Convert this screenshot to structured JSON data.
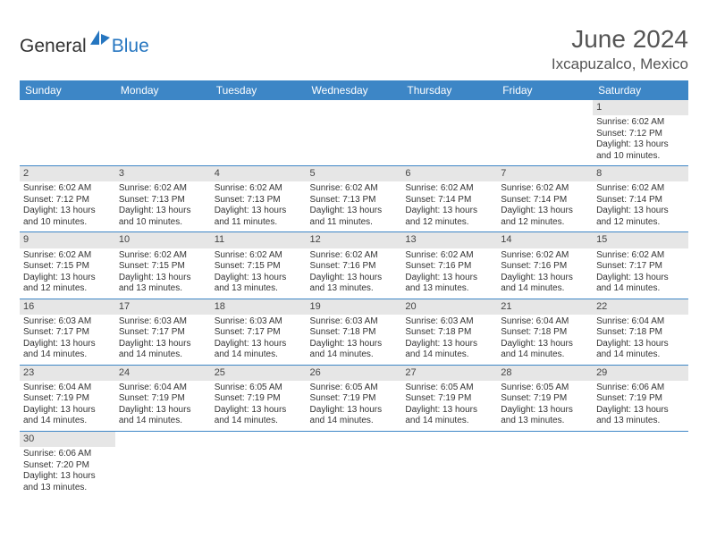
{
  "logo": {
    "general": "General",
    "blue": "Blue"
  },
  "title": "June 2024",
  "location": "Ixcapuzalco, Mexico",
  "headers": [
    "Sunday",
    "Monday",
    "Tuesday",
    "Wednesday",
    "Thursday",
    "Friday",
    "Saturday"
  ],
  "colors": {
    "header_bg": "#3d86c6",
    "header_fg": "#ffffff",
    "daynum_bg": "#e6e6e6",
    "rule": "#3d86c6",
    "logo_blue": "#2676c0"
  },
  "weeks": [
    [
      null,
      null,
      null,
      null,
      null,
      null,
      {
        "n": "1",
        "sr": "Sunrise: 6:02 AM",
        "ss": "Sunset: 7:12 PM",
        "dl": "Daylight: 13 hours and 10 minutes."
      }
    ],
    [
      {
        "n": "2",
        "sr": "Sunrise: 6:02 AM",
        "ss": "Sunset: 7:12 PM",
        "dl": "Daylight: 13 hours and 10 minutes."
      },
      {
        "n": "3",
        "sr": "Sunrise: 6:02 AM",
        "ss": "Sunset: 7:13 PM",
        "dl": "Daylight: 13 hours and 10 minutes."
      },
      {
        "n": "4",
        "sr": "Sunrise: 6:02 AM",
        "ss": "Sunset: 7:13 PM",
        "dl": "Daylight: 13 hours and 11 minutes."
      },
      {
        "n": "5",
        "sr": "Sunrise: 6:02 AM",
        "ss": "Sunset: 7:13 PM",
        "dl": "Daylight: 13 hours and 11 minutes."
      },
      {
        "n": "6",
        "sr": "Sunrise: 6:02 AM",
        "ss": "Sunset: 7:14 PM",
        "dl": "Daylight: 13 hours and 12 minutes."
      },
      {
        "n": "7",
        "sr": "Sunrise: 6:02 AM",
        "ss": "Sunset: 7:14 PM",
        "dl": "Daylight: 13 hours and 12 minutes."
      },
      {
        "n": "8",
        "sr": "Sunrise: 6:02 AM",
        "ss": "Sunset: 7:14 PM",
        "dl": "Daylight: 13 hours and 12 minutes."
      }
    ],
    [
      {
        "n": "9",
        "sr": "Sunrise: 6:02 AM",
        "ss": "Sunset: 7:15 PM",
        "dl": "Daylight: 13 hours and 12 minutes."
      },
      {
        "n": "10",
        "sr": "Sunrise: 6:02 AM",
        "ss": "Sunset: 7:15 PM",
        "dl": "Daylight: 13 hours and 13 minutes."
      },
      {
        "n": "11",
        "sr": "Sunrise: 6:02 AM",
        "ss": "Sunset: 7:15 PM",
        "dl": "Daylight: 13 hours and 13 minutes."
      },
      {
        "n": "12",
        "sr": "Sunrise: 6:02 AM",
        "ss": "Sunset: 7:16 PM",
        "dl": "Daylight: 13 hours and 13 minutes."
      },
      {
        "n": "13",
        "sr": "Sunrise: 6:02 AM",
        "ss": "Sunset: 7:16 PM",
        "dl": "Daylight: 13 hours and 13 minutes."
      },
      {
        "n": "14",
        "sr": "Sunrise: 6:02 AM",
        "ss": "Sunset: 7:16 PM",
        "dl": "Daylight: 13 hours and 14 minutes."
      },
      {
        "n": "15",
        "sr": "Sunrise: 6:02 AM",
        "ss": "Sunset: 7:17 PM",
        "dl": "Daylight: 13 hours and 14 minutes."
      }
    ],
    [
      {
        "n": "16",
        "sr": "Sunrise: 6:03 AM",
        "ss": "Sunset: 7:17 PM",
        "dl": "Daylight: 13 hours and 14 minutes."
      },
      {
        "n": "17",
        "sr": "Sunrise: 6:03 AM",
        "ss": "Sunset: 7:17 PM",
        "dl": "Daylight: 13 hours and 14 minutes."
      },
      {
        "n": "18",
        "sr": "Sunrise: 6:03 AM",
        "ss": "Sunset: 7:17 PM",
        "dl": "Daylight: 13 hours and 14 minutes."
      },
      {
        "n": "19",
        "sr": "Sunrise: 6:03 AM",
        "ss": "Sunset: 7:18 PM",
        "dl": "Daylight: 13 hours and 14 minutes."
      },
      {
        "n": "20",
        "sr": "Sunrise: 6:03 AM",
        "ss": "Sunset: 7:18 PM",
        "dl": "Daylight: 13 hours and 14 minutes."
      },
      {
        "n": "21",
        "sr": "Sunrise: 6:04 AM",
        "ss": "Sunset: 7:18 PM",
        "dl": "Daylight: 13 hours and 14 minutes."
      },
      {
        "n": "22",
        "sr": "Sunrise: 6:04 AM",
        "ss": "Sunset: 7:18 PM",
        "dl": "Daylight: 13 hours and 14 minutes."
      }
    ],
    [
      {
        "n": "23",
        "sr": "Sunrise: 6:04 AM",
        "ss": "Sunset: 7:19 PM",
        "dl": "Daylight: 13 hours and 14 minutes."
      },
      {
        "n": "24",
        "sr": "Sunrise: 6:04 AM",
        "ss": "Sunset: 7:19 PM",
        "dl": "Daylight: 13 hours and 14 minutes."
      },
      {
        "n": "25",
        "sr": "Sunrise: 6:05 AM",
        "ss": "Sunset: 7:19 PM",
        "dl": "Daylight: 13 hours and 14 minutes."
      },
      {
        "n": "26",
        "sr": "Sunrise: 6:05 AM",
        "ss": "Sunset: 7:19 PM",
        "dl": "Daylight: 13 hours and 14 minutes."
      },
      {
        "n": "27",
        "sr": "Sunrise: 6:05 AM",
        "ss": "Sunset: 7:19 PM",
        "dl": "Daylight: 13 hours and 14 minutes."
      },
      {
        "n": "28",
        "sr": "Sunrise: 6:05 AM",
        "ss": "Sunset: 7:19 PM",
        "dl": "Daylight: 13 hours and 13 minutes."
      },
      {
        "n": "29",
        "sr": "Sunrise: 6:06 AM",
        "ss": "Sunset: 7:19 PM",
        "dl": "Daylight: 13 hours and 13 minutes."
      }
    ],
    [
      {
        "n": "30",
        "sr": "Sunrise: 6:06 AM",
        "ss": "Sunset: 7:20 PM",
        "dl": "Daylight: 13 hours and 13 minutes."
      },
      null,
      null,
      null,
      null,
      null,
      null
    ]
  ]
}
